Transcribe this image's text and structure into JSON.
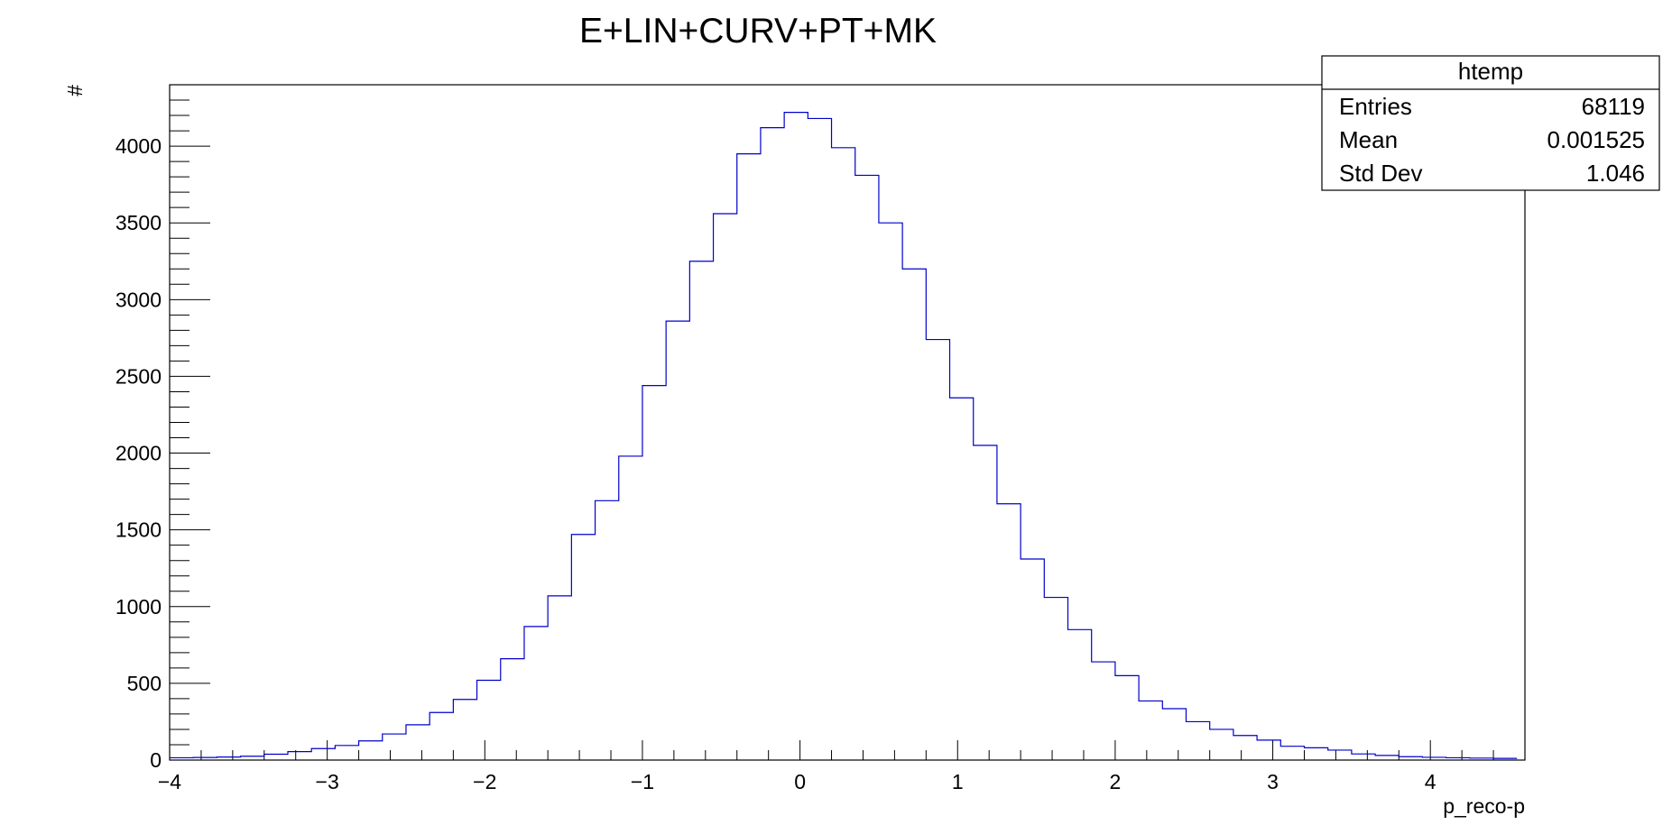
{
  "chart_data": {
    "type": "bar",
    "style": "step-histogram",
    "title": "E+LIN+CURV+PT+MK",
    "xlabel": "p_reco-p",
    "ylabel": "#",
    "xlim": [
      -4.0,
      4.6
    ],
    "ylim": [
      0,
      4400
    ],
    "x_ticks": [
      -4,
      -3,
      -2,
      -1,
      0,
      1,
      2,
      3,
      4
    ],
    "x_tick_labels": [
      "−4",
      "−3",
      "−2",
      "−1",
      "0",
      "1",
      "2",
      "3",
      "4"
    ],
    "y_ticks": [
      0,
      500,
      1000,
      1500,
      2000,
      2500,
      3000,
      3500,
      4000
    ],
    "y_tick_labels": [
      "0",
      "500",
      "1000",
      "1500",
      "2000",
      "2500",
      "3000",
      "3500",
      "4000"
    ],
    "grid": false,
    "line_color": "#0000cc",
    "bin_edges_start": -4.0,
    "bin_width": 0.15,
    "values": [
      15,
      17,
      20,
      25,
      38,
      55,
      75,
      95,
      125,
      170,
      230,
      310,
      395,
      520,
      660,
      870,
      1070,
      1470,
      1690,
      1980,
      2440,
      2860,
      3250,
      3560,
      3950,
      4120,
      4220,
      4180,
      3990,
      3810,
      3500,
      3200,
      2740,
      2360,
      2050,
      1670,
      1310,
      1060,
      850,
      640,
      550,
      385,
      335,
      250,
      200,
      160,
      130,
      90,
      80,
      65,
      40,
      30,
      22,
      18,
      15,
      13,
      11
    ]
  },
  "stats_box": {
    "name": "htemp",
    "rows": [
      {
        "label": "Entries",
        "value": "68119"
      },
      {
        "label": "Mean",
        "value": "0.001525"
      },
      {
        "label": "Std Dev",
        "value": "1.046"
      }
    ]
  }
}
